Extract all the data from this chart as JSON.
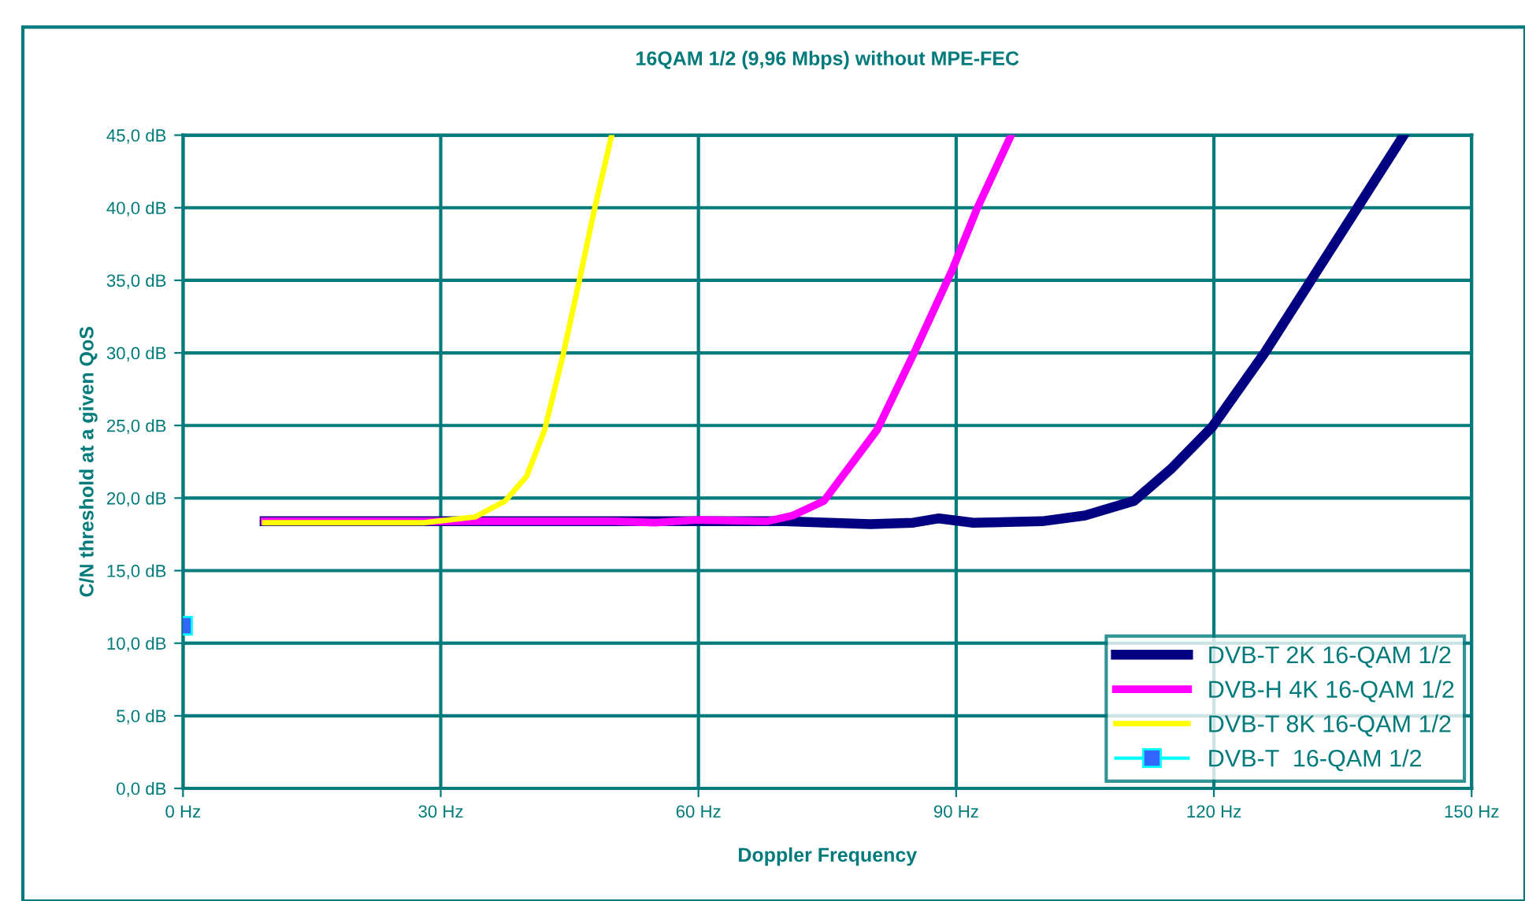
{
  "chart_data": {
    "type": "line",
    "title": "16QAM 1/2 (9,96 Mbps) without MPE-FEC",
    "xlabel": "Doppler Frequency",
    "ylabel": "C/N threshold at a given QoS",
    "xlim": [
      0,
      150
    ],
    "ylim": [
      0,
      45
    ],
    "xticks": [
      {
        "value": 0,
        "label": "0 Hz"
      },
      {
        "value": 30,
        "label": "30 Hz"
      },
      {
        "value": 60,
        "label": "60 Hz"
      },
      {
        "value": 90,
        "label": "90 Hz"
      },
      {
        "value": 120,
        "label": "120 Hz"
      },
      {
        "value": 150,
        "label": "150 Hz"
      }
    ],
    "yticks": [
      {
        "value": 0,
        "label": "0,0 dB"
      },
      {
        "value": 5,
        "label": "5,0 dB"
      },
      {
        "value": 10,
        "label": "10,0 dB"
      },
      {
        "value": 15,
        "label": "15,0 dB"
      },
      {
        "value": 20,
        "label": "20,0 dB"
      },
      {
        "value": 25,
        "label": "25,0 dB"
      },
      {
        "value": 30,
        "label": "30,0 dB"
      },
      {
        "value": 35,
        "label": "35,0 dB"
      },
      {
        "value": 40,
        "label": "40,0 dB"
      },
      {
        "value": 45,
        "label": "45,0 dB"
      }
    ],
    "grid": true,
    "legend": "bottom right",
    "series": [
      {
        "name": "DVB-T 2K 16-QAM 1/2",
        "color": "#000080",
        "marker": "none",
        "x": [
          9.5,
          30,
          50,
          70,
          80,
          85,
          88,
          92,
          100,
          105,
          110.7,
          115,
          119.8,
          125.9,
          131.2,
          136.6,
          142.1
        ],
        "values": [
          18.4,
          18.4,
          18.4,
          18.4,
          18.2,
          18.3,
          18.6,
          18.3,
          18.4,
          18.8,
          19.8,
          22,
          24.9,
          30,
          34.9,
          39.9,
          45
        ]
      },
      {
        "name": "DVB-H 4K 16-QAM 1/2",
        "color": "#ff00ff",
        "marker": "none",
        "x": [
          9.5,
          30,
          50,
          55,
          60,
          68,
          71,
          74.6,
          80.8,
          85.1,
          89.6,
          92.4,
          96.4
        ],
        "values": [
          18.4,
          18.4,
          18.4,
          18.3,
          18.5,
          18.4,
          18.8,
          19.8,
          24.7,
          30,
          35.8,
          39.9,
          45
        ]
      },
      {
        "name": "DVB-T 8K 16-QAM 1/2",
        "color": "#ffff00",
        "marker": "none",
        "x": [
          9.5,
          20,
          28,
          34,
          37.5,
          40,
          42.1,
          44.3,
          46.1,
          47.9,
          49.9
        ],
        "values": [
          18.3,
          18.3,
          18.3,
          18.7,
          19.8,
          21.5,
          24.7,
          30,
          34.9,
          39.9,
          45
        ]
      },
      {
        "name": "DVB-T  16-QAM 1/2",
        "color": "#00ffff",
        "marker": "square",
        "x": [
          0
        ],
        "values": [
          11.2
        ]
      }
    ]
  }
}
